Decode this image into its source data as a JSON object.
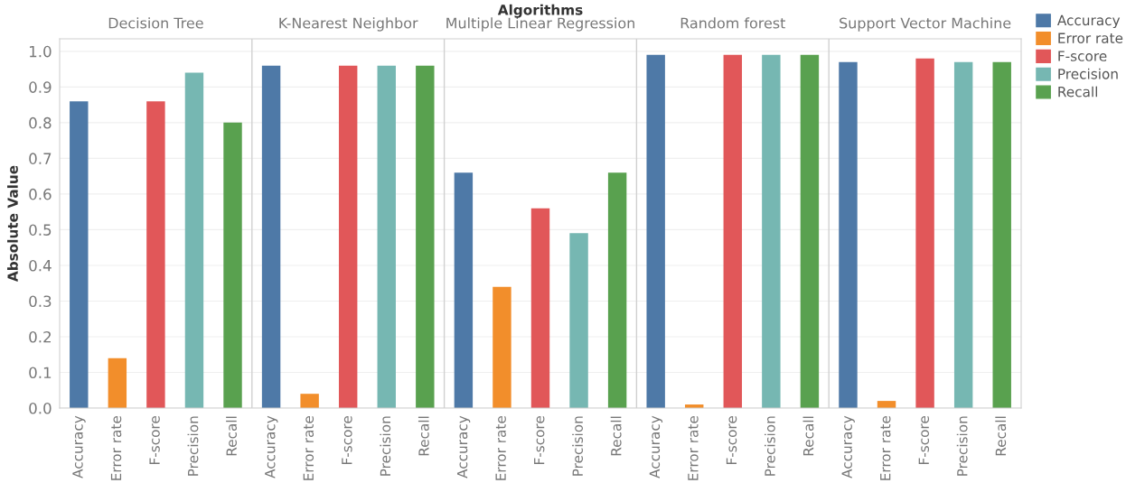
{
  "chart_data": {
    "type": "bar",
    "xlabel": "Algorithms",
    "ylabel": "Absolute Value",
    "categories": [
      "Decision Tree",
      "K-Nearest Neighbor",
      "Multiple Linear Regression",
      "Random forest",
      "Support Vector Machine"
    ],
    "series": [
      {
        "name": "Accuracy",
        "color": "#4e79a7",
        "values": [
          0.86,
          0.96,
          0.66,
          0.99,
          0.97
        ]
      },
      {
        "name": "Error rate",
        "color": "#f28e2b",
        "values": [
          0.14,
          0.04,
          0.34,
          0.01,
          0.02
        ]
      },
      {
        "name": "F-score",
        "color": "#e15759",
        "values": [
          0.86,
          0.96,
          0.56,
          0.99,
          0.98
        ]
      },
      {
        "name": "Precision",
        "color": "#76b7b2",
        "values": [
          0.94,
          0.96,
          0.49,
          0.99,
          0.97
        ]
      },
      {
        "name": "Recall",
        "color": "#59a14f",
        "values": [
          0.8,
          0.96,
          0.66,
          0.99,
          0.97
        ]
      }
    ],
    "ylim": [
      0,
      1.035
    ],
    "yticks": [
      {
        "value": 0,
        "label": "0.0"
      },
      0.1,
      0.2,
      0.3,
      0.4,
      0.5,
      0.6,
      0.7,
      0.8,
      0.9,
      {
        "value": 1,
        "label": "1.0"
      }
    ],
    "grid": "y",
    "legend": "right"
  }
}
